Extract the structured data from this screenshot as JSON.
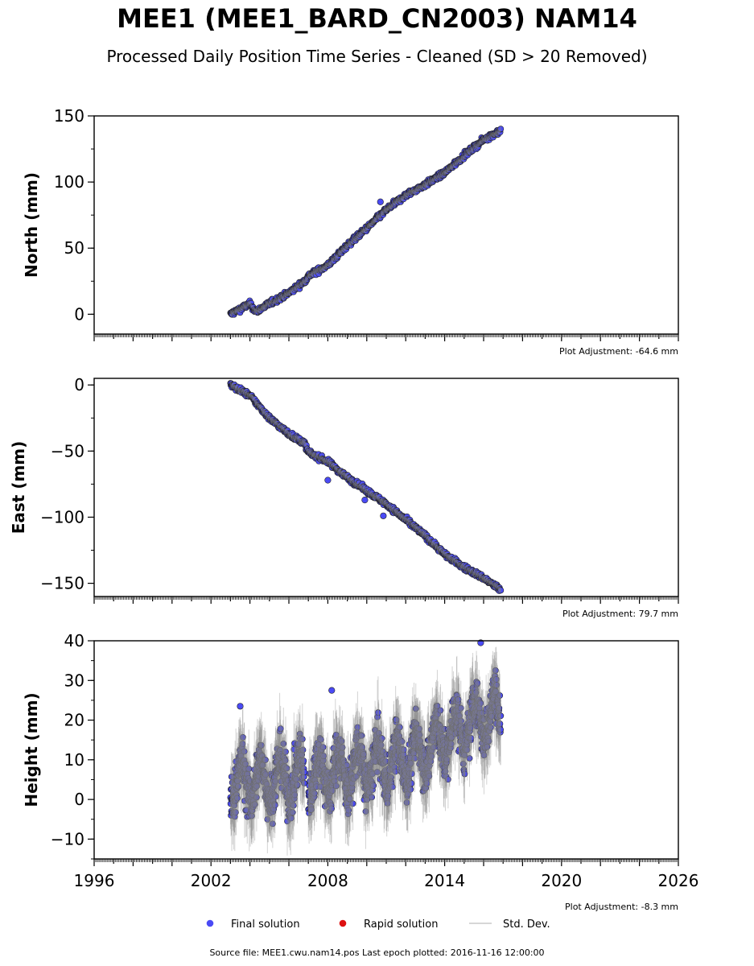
{
  "title": "MEE1 (MEE1_BARD_CN2003) NAM14",
  "subtitle": "Processed Daily Position Time Series - Cleaned (SD > 20 Removed)",
  "source_line": "Source file: MEE1.cwu.nam14.pos  Last epoch plotted: 2016-11-16 12:00:00",
  "colors": {
    "final": "#4a4af5",
    "rapid": "#dd1111",
    "stddev": "#808080"
  },
  "chart_data": [
    {
      "type": "scatter",
      "ylabel": "North (mm)",
      "xlim": [
        1996,
        2026
      ],
      "ylim": [
        -15,
        150
      ],
      "yticks": [
        0,
        50,
        100,
        150
      ],
      "ytick_labels": [
        "0",
        "50",
        "100",
        "150"
      ],
      "adjustment": "Plot Adjustment: -64.6 mm",
      "series": [
        {
          "data_span": [
            2003.0,
            2016.88
          ],
          "trend_points": [
            [
              2003.0,
              0.0
            ],
            [
              2004.0,
              8.0
            ],
            [
              2004.3,
              2.0
            ],
            [
              2005.0,
              8.0
            ],
            [
              2006.0,
              16.0
            ],
            [
              2006.8,
              25.0
            ],
            [
              2007.0,
              29.0
            ],
            [
              2008.0,
              37.0
            ],
            [
              2009.0,
              52.0
            ],
            [
              2010.0,
              65.0
            ],
            [
              2011.0,
              79.0
            ],
            [
              2012.0,
              90.0
            ],
            [
              2013.0,
              98.0
            ],
            [
              2014.0,
              107.0
            ],
            [
              2015.0,
              120.0
            ],
            [
              2016.0,
              132.0
            ],
            [
              2016.88,
              139.0
            ]
          ],
          "scatter_mm": 1.5,
          "outliers": [
            [
              2010.7,
              85.0
            ]
          ]
        }
      ]
    },
    {
      "type": "scatter",
      "ylabel": "East (mm)",
      "xlim": [
        1996,
        2026
      ],
      "ylim": [
        -160,
        5
      ],
      "yticks": [
        -150,
        -100,
        -50,
        0
      ],
      "ytick_labels": [
        "−150",
        "−100",
        "−50",
        "0"
      ],
      "adjustment": "Plot Adjustment: 79.7 mm",
      "series": [
        {
          "data_span": [
            2003.0,
            2016.88
          ],
          "trend_points": [
            [
              2003.0,
              0.0
            ],
            [
              2004.0,
              -8.0
            ],
            [
              2005.0,
              -25.0
            ],
            [
              2006.0,
              -37.0
            ],
            [
              2006.8,
              -44.0
            ],
            [
              2007.0,
              -51.0
            ],
            [
              2008.0,
              -58.0
            ],
            [
              2009.0,
              -70.0
            ],
            [
              2010.0,
              -80.0
            ],
            [
              2011.0,
              -90.0
            ],
            [
              2012.0,
              -102.0
            ],
            [
              2013.0,
              -114.0
            ],
            [
              2014.0,
              -128.0
            ],
            [
              2015.0,
              -138.0
            ],
            [
              2016.0,
              -146.0
            ],
            [
              2016.88,
              -155.0
            ]
          ],
          "scatter_mm": 1.5,
          "outliers": [
            [
              2008.0,
              -72.0
            ],
            [
              2009.9,
              -87.0
            ],
            [
              2010.85,
              -99.0
            ]
          ]
        }
      ]
    },
    {
      "type": "scatter",
      "ylabel": "Height (mm)",
      "xlim": [
        1996,
        2026
      ],
      "ylim": [
        -15,
        40
      ],
      "yticks": [
        -10,
        0,
        10,
        20,
        30,
        40
      ],
      "ytick_labels": [
        "−10",
        "0",
        "10",
        "20",
        "30",
        "40"
      ],
      "xticks": [
        1996,
        2002,
        2008,
        2014,
        2020,
        2026
      ],
      "xtick_labels": [
        "1996",
        "2002",
        "2008",
        "2014",
        "2020",
        "2026"
      ],
      "adjustment": "Plot Adjustment: -8.3 mm",
      "series": [
        {
          "data_span": [
            2003.0,
            2016.88
          ],
          "trend_points": [
            [
              2003.0,
              4.0
            ],
            [
              2007.0,
              6.0
            ],
            [
              2010.0,
              8.0
            ],
            [
              2012.0,
              10.0
            ],
            [
              2013.5,
              14.0
            ],
            [
              2015.0,
              18.0
            ],
            [
              2016.0,
              21.0
            ],
            [
              2016.88,
              22.0
            ]
          ],
          "seasonal_amplitude_mm": 5,
          "scatter_mm": 4.5,
          "gap": [
            2006.8,
            2007.0
          ],
          "outliers": [
            [
              2015.85,
              39.5
            ],
            [
              2003.5,
              23.5
            ],
            [
              2008.2,
              27.5
            ]
          ]
        }
      ]
    }
  ],
  "legend": {
    "items": [
      {
        "label": "Final solution",
        "kind": "final"
      },
      {
        "label": "Rapid solution",
        "kind": "rapid"
      },
      {
        "label": "Std. Dev.",
        "kind": "stddev"
      }
    ]
  }
}
